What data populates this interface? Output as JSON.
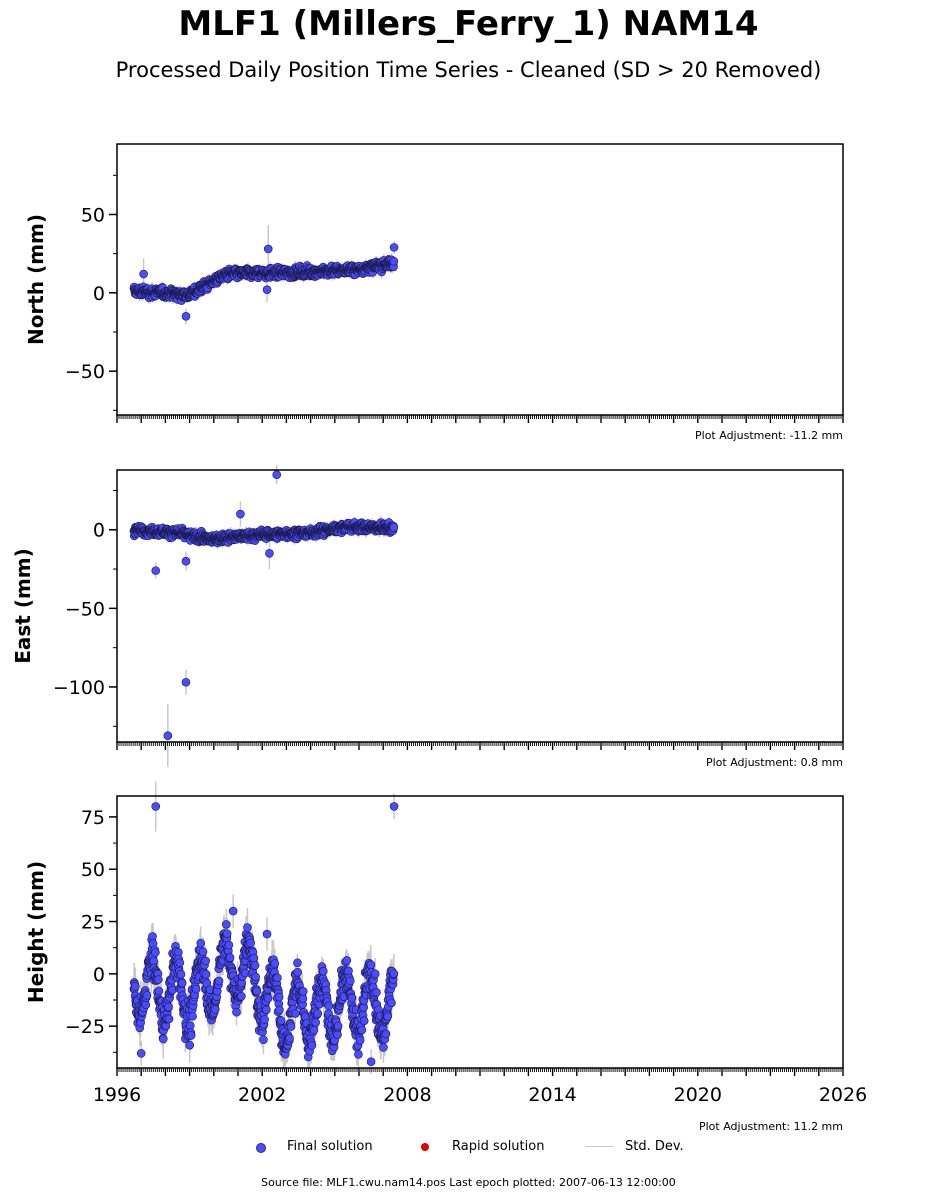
{
  "title": "MLF1 (Millers_Ferry_1) NAM14",
  "subtitle": "Processed Daily Position Time Series - Cleaned (SD > 20 Removed)",
  "legend": [
    {
      "label": "Final solution",
      "color": "#4b4bff"
    },
    {
      "label": "Rapid solution",
      "color": "#e00000"
    },
    {
      "label": "Std. Dev.",
      "color": "#c8c8c8"
    }
  ],
  "source_text": "Source file: MLF1.cwu.nam14.pos  Last epoch plotted: 2007-06-13 12:00:00",
  "chart_data": [
    {
      "type": "scatter",
      "ylabel": "North (mm)",
      "xlim": [
        1996,
        2026
      ],
      "ylim": [
        -78,
        95
      ],
      "yticks": [
        "50",
        "0",
        "−50"
      ],
      "adjustment_note": "Plot Adjustment: -11.2 mm",
      "grid": false,
      "trend": {
        "x": [
          1996.7,
          1998.0,
          1999.0,
          2000.5,
          2003.5,
          2006.0,
          2007.45
        ],
        "y": [
          1,
          0,
          -1,
          12,
          13,
          15,
          19
        ]
      },
      "noise_mm": 2.5,
      "sd_mm": 3,
      "outliers": [
        {
          "x": 1997.1,
          "y": 12,
          "sd": 10
        },
        {
          "x": 1998.85,
          "y": -15,
          "sd": 5
        },
        {
          "x": 2002.25,
          "y": 28,
          "sd": 15
        },
        {
          "x": 2002.2,
          "y": 2,
          "sd": 8
        },
        {
          "x": 2007.45,
          "y": 29,
          "sd": 4
        }
      ]
    },
    {
      "type": "scatter",
      "ylabel": "East (mm)",
      "xlim": [
        1996,
        2026
      ],
      "ylim": [
        -135,
        38
      ],
      "yticks": [
        "0",
        "−50",
        "−100"
      ],
      "adjustment_note": "Plot Adjustment: 0.8 mm",
      "grid": false,
      "trend": {
        "x": [
          1996.7,
          1998.5,
          1999.8,
          2002.0,
          2004.0,
          2005.5,
          2007.45
        ],
        "y": [
          0,
          -2,
          -6,
          -3,
          -2,
          2,
          1
        ]
      },
      "noise_mm": 2.2,
      "sd_mm": 3,
      "outliers": [
        {
          "x": 1997.6,
          "y": -26,
          "sd": 5
        },
        {
          "x": 1998.1,
          "y": -131,
          "sd": 20
        },
        {
          "x": 1998.85,
          "y": -97,
          "sd": 8
        },
        {
          "x": 1998.85,
          "y": -20,
          "sd": 6
        },
        {
          "x": 2001.1,
          "y": 10,
          "sd": 8
        },
        {
          "x": 2002.3,
          "y": -15,
          "sd": 10
        },
        {
          "x": 2002.6,
          "y": 35,
          "sd": 6
        }
      ]
    },
    {
      "type": "scatter",
      "ylabel": "Height (mm)",
      "xlim": [
        1996,
        2026
      ],
      "ylim": [
        -45,
        85
      ],
      "yticks": [
        "75",
        "50",
        "25",
        "0",
        "−25"
      ],
      "xticks": [
        "1996",
        "2002",
        "2008",
        "2014",
        "2020",
        "2026"
      ],
      "adjustment_note": "Plot Adjustment: 11.2 mm",
      "grid": false,
      "trend": {
        "x": [
          1996.7,
          1999.0,
          2001.0,
          2003.0,
          2005.0,
          2007.45
        ],
        "y": [
          -5,
          -10,
          5,
          -20,
          -15,
          -15
        ]
      },
      "seasonal_amplitude_mm": 15,
      "noise_mm": 7,
      "sd_mm": 7,
      "outliers": [
        {
          "x": 1997.6,
          "y": 80,
          "sd": 12
        },
        {
          "x": 2007.45,
          "y": 80,
          "sd": 6
        },
        {
          "x": 2000.8,
          "y": 30,
          "sd": 8
        },
        {
          "x": 2002.2,
          "y": 19,
          "sd": 8
        },
        {
          "x": 1997.0,
          "y": -38,
          "sd": 6
        },
        {
          "x": 2006.5,
          "y": -42,
          "sd": 6
        }
      ]
    }
  ]
}
